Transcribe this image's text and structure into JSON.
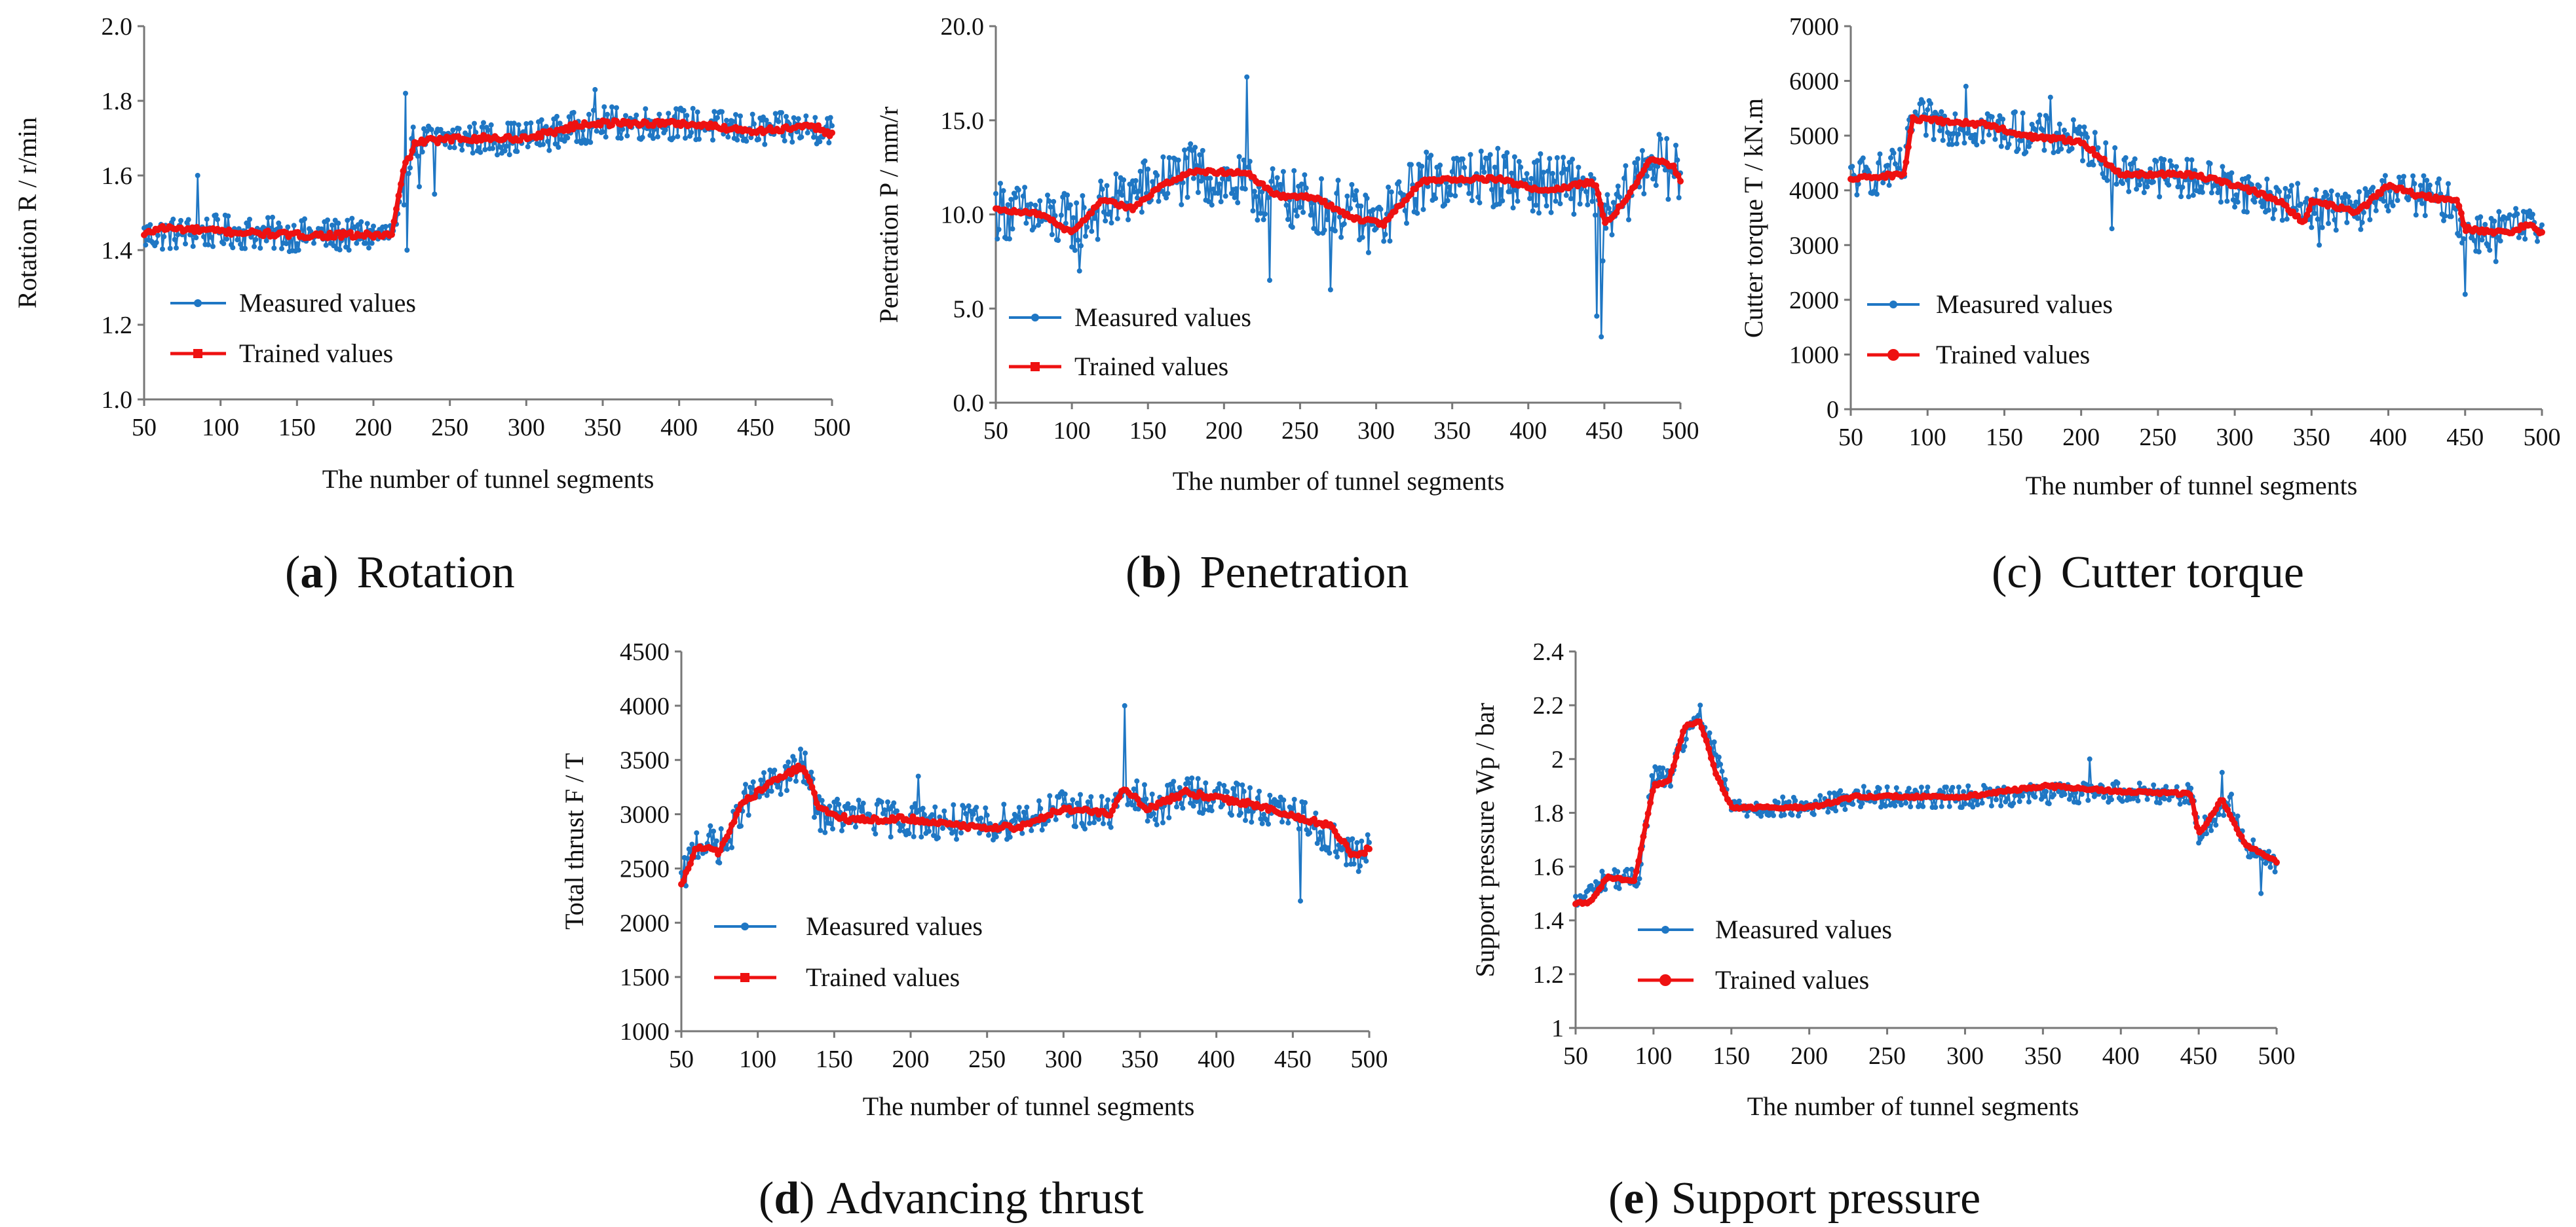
{
  "colors": {
    "measured": "#1f77c4",
    "trained": "#ee1111",
    "axis": "#777777",
    "text": "#111111"
  },
  "chart_data": [
    {
      "id": "a",
      "type": "line",
      "caption_letter": "a",
      "caption_text": "Rotation",
      "caption_paren_open": "(",
      "caption_paren_close": ")",
      "caption_bold_letter": true,
      "ylabel": "Rotation R / r/min",
      "xlabel": "The number of tunnel segments",
      "xlim": [
        50,
        500
      ],
      "ylim": [
        1.0,
        2.0
      ],
      "xticks": [
        "50",
        "100",
        "150",
        "200",
        "250",
        "300",
        "350",
        "400",
        "450",
        "500"
      ],
      "yticks": [
        "1.0",
        "1.2",
        "1.4",
        "1.6",
        "1.8",
        "2.0"
      ],
      "legend": {
        "measured": "Measured values",
        "trained": "Trained values",
        "position": "lower-left"
      },
      "series": [
        {
          "name": "Measured values",
          "knots": [
            [
              50,
              1.44
            ],
            [
              100,
              1.45
            ],
            [
              150,
              1.44
            ],
            [
              215,
              1.44
            ],
            [
              225,
              1.69
            ],
            [
              250,
              1.7
            ],
            [
              300,
              1.7
            ],
            [
              350,
              1.74
            ],
            [
              400,
              1.74
            ],
            [
              450,
              1.72
            ],
            [
              500,
              1.73
            ]
          ],
          "noise": 0.045,
          "outliers": [
            [
              85,
              1.6
            ],
            [
              221,
              1.82
            ],
            [
              230,
              1.57
            ],
            [
              222,
              1.4
            ],
            [
              345,
              1.83
            ],
            [
              240,
              1.55
            ]
          ]
        },
        {
          "name": "Trained values",
          "knots": [
            [
              50,
              1.44
            ],
            [
              60,
              1.46
            ],
            [
              100,
              1.45
            ],
            [
              150,
              1.44
            ],
            [
              212,
              1.44
            ],
            [
              220,
              1.62
            ],
            [
              228,
              1.69
            ],
            [
              260,
              1.7
            ],
            [
              300,
              1.7
            ],
            [
              340,
              1.74
            ],
            [
              400,
              1.74
            ],
            [
              450,
              1.72
            ],
            [
              490,
              1.73
            ],
            [
              500,
              1.71
            ]
          ],
          "noise": 0.008
        }
      ]
    },
    {
      "id": "b",
      "type": "line",
      "caption_letter": "b",
      "caption_text": "Penetration",
      "caption_paren_open": "(",
      "caption_paren_close": ")",
      "caption_bold_letter": true,
      "ylabel": "Penetration P / mm/r",
      "xlabel": "The number of tunnel segments",
      "xlim": [
        50,
        500
      ],
      "ylim": [
        0.0,
        20.0
      ],
      "xticks": [
        "50",
        "100",
        "150",
        "200",
        "250",
        "300",
        "350",
        "400",
        "450",
        "500"
      ],
      "yticks": [
        "0.0",
        "5.0",
        "10.0",
        "15.0",
        "20.0"
      ],
      "legend": {
        "measured": "Measured values",
        "trained": "Trained values",
        "position": "lower-left"
      },
      "series": [
        {
          "name": "Measured values",
          "knots": [
            [
              50,
              10.3
            ],
            [
              100,
              9.5
            ],
            [
              150,
              11.5
            ],
            [
              180,
              12.2
            ],
            [
              230,
              11.0
            ],
            [
              280,
              10.2
            ],
            [
              300,
              9.3
            ],
            [
              330,
              11.8
            ],
            [
              380,
              12.0
            ],
            [
              420,
              11.5
            ],
            [
              440,
              11.6
            ],
            [
              448,
              9.0
            ],
            [
              460,
              10.5
            ],
            [
              480,
              13.0
            ],
            [
              500,
              12.0
            ]
          ],
          "noise": 1.6,
          "outliers": [
            [
              215,
              17.3
            ],
            [
              445,
              4.6
            ],
            [
              448,
              3.5
            ],
            [
              270,
              6.0
            ],
            [
              105,
              7.0
            ],
            [
              230,
              6.5
            ]
          ]
        },
        {
          "name": "Trained values",
          "knots": [
            [
              50,
              10.3
            ],
            [
              80,
              10.0
            ],
            [
              100,
              9.0
            ],
            [
              120,
              10.8
            ],
            [
              140,
              10.3
            ],
            [
              160,
              11.6
            ],
            [
              180,
              12.3
            ],
            [
              215,
              12.2
            ],
            [
              235,
              11.0
            ],
            [
              260,
              10.9
            ],
            [
              285,
              9.8
            ],
            [
              305,
              9.5
            ],
            [
              330,
              11.8
            ],
            [
              380,
              11.9
            ],
            [
              410,
              11.2
            ],
            [
              440,
              11.7
            ],
            [
              445,
              11.6
            ],
            [
              450,
              9.5
            ],
            [
              465,
              10.8
            ],
            [
              480,
              13.0
            ],
            [
              495,
              12.6
            ],
            [
              500,
              11.8
            ]
          ],
          "noise": 0.1
        }
      ]
    },
    {
      "id": "c",
      "type": "line",
      "caption_letter": "c",
      "caption_text": "Cutter  torque",
      "caption_paren_open": "(",
      "caption_paren_close": ")",
      "caption_bold_letter": false,
      "ylabel": "Cutter torque T / kN.m",
      "xlabel": "The number of tunnel segments",
      "xlim": [
        50,
        500
      ],
      "ylim": [
        0,
        7000
      ],
      "xticks": [
        "50",
        "100",
        "150",
        "200",
        "250",
        "300",
        "350",
        "400",
        "450",
        "500"
      ],
      "yticks": [
        "0",
        "1000",
        "2000",
        "3000",
        "4000",
        "5000",
        "6000",
        "7000"
      ],
      "legend": {
        "measured": "Measured values",
        "trained": "Trained values",
        "position": "lower-left"
      },
      "series": [
        {
          "name": "Measured values",
          "knots": [
            [
              50,
              4200
            ],
            [
              85,
              4400
            ],
            [
              90,
              5300
            ],
            [
              150,
              5100
            ],
            [
              200,
              4900
            ],
            [
              230,
              4300
            ],
            [
              280,
              4200
            ],
            [
              330,
              3800
            ],
            [
              350,
              3700
            ],
            [
              380,
              3600
            ],
            [
              400,
              4000
            ],
            [
              440,
              3800
            ],
            [
              450,
              3200
            ],
            [
              480,
              3300
            ],
            [
              500,
              3300
            ]
          ],
          "noise": 380,
          "outliers": [
            [
              125,
              5900
            ],
            [
              450,
              2100
            ],
            [
              220,
              3300
            ],
            [
              355,
              3000
            ],
            [
              470,
              2700
            ],
            [
              180,
              5700
            ]
          ]
        },
        {
          "name": "Trained values",
          "knots": [
            [
              50,
              4200
            ],
            [
              85,
              4300
            ],
            [
              90,
              5300
            ],
            [
              140,
              5200
            ],
            [
              160,
              5000
            ],
            [
              200,
              4900
            ],
            [
              225,
              4300
            ],
            [
              270,
              4300
            ],
            [
              300,
              4100
            ],
            [
              330,
              3800
            ],
            [
              345,
              3400
            ],
            [
              350,
              3800
            ],
            [
              380,
              3600
            ],
            [
              400,
              4100
            ],
            [
              420,
              3900
            ],
            [
              445,
              3800
            ],
            [
              450,
              3300
            ],
            [
              480,
              3200
            ],
            [
              490,
              3400
            ],
            [
              500,
              3200
            ]
          ],
          "noise": 40
        }
      ]
    },
    {
      "id": "d",
      "type": "line",
      "caption_letter": "d",
      "caption_text": "Advancing thrust",
      "caption_paren_open": "(",
      "caption_paren_close": ")",
      "caption_bold_letter": true,
      "ylabel": "Total thrust F / T",
      "xlabel": "The number of tunnel segments",
      "xlim": [
        50,
        500
      ],
      "ylim": [
        1000,
        4500
      ],
      "xticks": [
        "50",
        "100",
        "150",
        "200",
        "250",
        "300",
        "350",
        "400",
        "450",
        "500"
      ],
      "yticks": [
        "1000",
        "1500",
        "2000",
        "2500",
        "3000",
        "3500",
        "4000",
        "4500"
      ],
      "legend": {
        "measured": "Measured values",
        "trained": "Trained values",
        "position": "lower-left"
      },
      "series": [
        {
          "name": "Measured values",
          "knots": [
            [
              50,
              2350
            ],
            [
              60,
              2750
            ],
            [
              80,
              2700
            ],
            [
              90,
              3100
            ],
            [
              130,
              3450
            ],
            [
              140,
              3000
            ],
            [
              200,
              2950
            ],
            [
              250,
              2900
            ],
            [
              300,
              3050
            ],
            [
              330,
              3000
            ],
            [
              340,
              3200
            ],
            [
              360,
              3050
            ],
            [
              380,
              3200
            ],
            [
              420,
              3100
            ],
            [
              460,
              2950
            ],
            [
              490,
              2600
            ],
            [
              500,
              2700
            ]
          ],
          "noise": 170,
          "outliers": [
            [
              340,
              4000
            ],
            [
              455,
              2200
            ],
            [
              205,
              3350
            ],
            [
              120,
              3480
            ]
          ]
        },
        {
          "name": "Trained values",
          "knots": [
            [
              50,
              2350
            ],
            [
              60,
              2700
            ],
            [
              75,
              2650
            ],
            [
              90,
              3100
            ],
            [
              110,
              3300
            ],
            [
              130,
              3450
            ],
            [
              140,
              3050
            ],
            [
              160,
              2950
            ],
            [
              200,
              2960
            ],
            [
              240,
              2880
            ],
            [
              270,
              2880
            ],
            [
              300,
              3050
            ],
            [
              330,
              3000
            ],
            [
              340,
              3250
            ],
            [
              355,
              3050
            ],
            [
              380,
              3200
            ],
            [
              420,
              3100
            ],
            [
              460,
              2950
            ],
            [
              475,
              2900
            ],
            [
              490,
              2600
            ],
            [
              500,
              2680
            ]
          ],
          "noise": 25
        }
      ]
    },
    {
      "id": "e",
      "type": "line",
      "caption_letter": "e",
      "caption_text": "Support pressure",
      "caption_paren_open": "(",
      "caption_paren_close": ")",
      "caption_bold_letter": true,
      "ylabel": "Support pressure Wp / bar",
      "xlabel": "The number of tunnel segments",
      "xlim": [
        50,
        500
      ],
      "ylim": [
        1.0,
        2.4
      ],
      "xticks": [
        "50",
        "100",
        "150",
        "200",
        "250",
        "300",
        "350",
        "400",
        "450",
        "500"
      ],
      "yticks": [
        "1",
        "1.2",
        "1.4",
        "1.6",
        "1.8",
        "2",
        "2.2",
        "2.4"
      ],
      "legend": {
        "measured": "Measured values",
        "trained": "Trained values",
        "position": "lower-left"
      },
      "series": [
        {
          "name": "Measured values",
          "knots": [
            [
              50,
              1.46
            ],
            [
              70,
              1.56
            ],
            [
              90,
              1.55
            ],
            [
              100,
              1.95
            ],
            [
              110,
              1.92
            ],
            [
              125,
              2.15
            ],
            [
              135,
              2.1
            ],
            [
              150,
              1.82
            ],
            [
              200,
              1.82
            ],
            [
              230,
              1.86
            ],
            [
              300,
              1.86
            ],
            [
              400,
              1.88
            ],
            [
              445,
              1.87
            ],
            [
              450,
              1.72
            ],
            [
              470,
              1.85
            ],
            [
              480,
              1.68
            ],
            [
              500,
              1.6
            ]
          ],
          "noise": 0.04,
          "outliers": [
            [
              130,
              2.2
            ],
            [
              380,
              2.0
            ],
            [
              490,
              1.5
            ],
            [
              465,
              1.95
            ]
          ]
        },
        {
          "name": "Trained values",
          "knots": [
            [
              50,
              1.46
            ],
            [
              60,
              1.47
            ],
            [
              70,
              1.56
            ],
            [
              88,
              1.55
            ],
            [
              100,
              1.9
            ],
            [
              110,
              1.92
            ],
            [
              120,
              2.12
            ],
            [
              130,
              2.14
            ],
            [
              140,
              1.95
            ],
            [
              150,
              1.82
            ],
            [
              200,
              1.82
            ],
            [
              230,
              1.86
            ],
            [
              300,
              1.86
            ],
            [
              350,
              1.9
            ],
            [
              400,
              1.88
            ],
            [
              445,
              1.87
            ],
            [
              450,
              1.72
            ],
            [
              465,
              1.85
            ],
            [
              480,
              1.68
            ],
            [
              500,
              1.62
            ]
          ],
          "noise": 0.005
        }
      ]
    }
  ]
}
